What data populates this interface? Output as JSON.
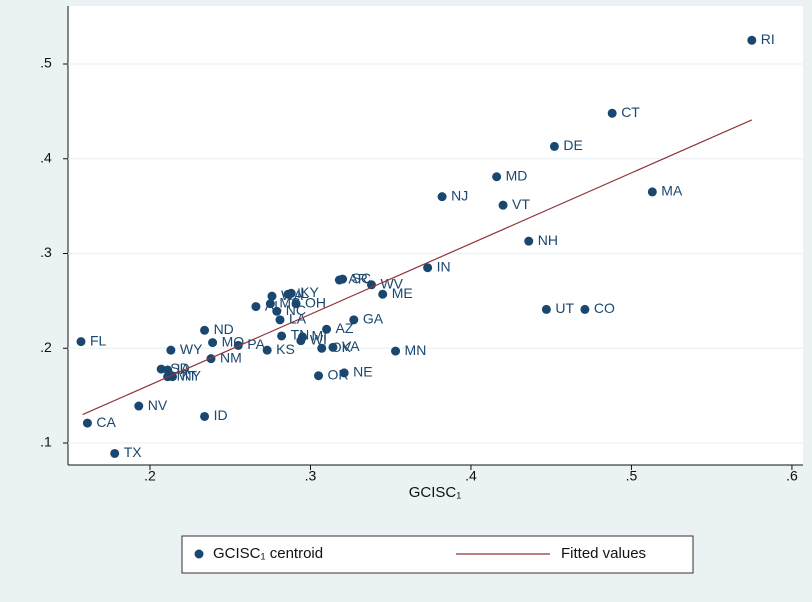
{
  "chart_data": {
    "type": "scatter",
    "x_label": "GCISC₁",
    "xlim": [
      0.1489,
      0.6069
    ],
    "ylim": [
      0.0768,
      0.5612
    ],
    "xticks": [
      {
        "value": 0.2,
        "label": ".2"
      },
      {
        "value": 0.3,
        "label": ".3"
      },
      {
        "value": 0.4,
        "label": ".4"
      },
      {
        "value": 0.5,
        "label": ".5"
      },
      {
        "value": 0.6,
        "label": ".6"
      }
    ],
    "yticks": [
      {
        "value": 0.1,
        "label": ".1"
      },
      {
        "value": 0.2,
        "label": ".2"
      },
      {
        "value": 0.3,
        "label": ".3"
      },
      {
        "value": 0.4,
        "label": ".4"
      },
      {
        "value": 0.5,
        "label": ".5"
      }
    ],
    "grid": true,
    "series": [
      {
        "name": "GCISC₁ centroid",
        "color": "#1a476f",
        "point_labels": [
          "FL",
          "CA",
          "TX",
          "NV",
          "ID",
          "ND",
          "WY",
          "NM",
          "SD",
          "IA",
          "MT",
          "NY",
          "MO",
          "PA",
          "KS",
          "AL",
          "MS",
          "WA",
          "IL",
          "KY",
          "OH",
          "NC",
          "LA",
          "TN",
          "MI",
          "WI",
          "AZ",
          "GA",
          "OK",
          "VA",
          "OR",
          "NE",
          "MN",
          "AR",
          "SC",
          "WV",
          "ME",
          "IN",
          "UT",
          "CO",
          "NH",
          "VT",
          "NJ",
          "MA",
          "MD",
          "DE",
          "CT",
          "RI"
        ],
        "x": [
          0.157,
          0.161,
          0.178,
          0.193,
          0.234,
          0.234,
          0.213,
          0.238,
          0.207,
          0.211,
          0.211,
          0.214,
          0.239,
          0.255,
          0.273,
          0.266,
          0.275,
          0.276,
          0.286,
          0.288,
          0.291,
          0.279,
          0.281,
          0.282,
          0.295,
          0.294,
          0.31,
          0.327,
          0.307,
          0.314,
          0.305,
          0.321,
          0.353,
          0.318,
          0.32,
          0.338,
          0.345,
          0.373,
          0.447,
          0.471,
          0.436,
          0.42,
          0.382,
          0.513,
          0.416,
          0.452,
          0.488,
          0.575
        ],
        "values": [
          0.207,
          0.121,
          0.089,
          0.139,
          0.128,
          0.219,
          0.198,
          0.189,
          0.178,
          0.177,
          0.17,
          0.17,
          0.206,
          0.203,
          0.198,
          0.244,
          0.247,
          0.255,
          0.257,
          0.258,
          0.247,
          0.239,
          0.23,
          0.213,
          0.212,
          0.208,
          0.22,
          0.23,
          0.2,
          0.201,
          0.171,
          0.174,
          0.197,
          0.272,
          0.273,
          0.267,
          0.257,
          0.285,
          0.241,
          0.241,
          0.313,
          0.351,
          0.36,
          0.365,
          0.381,
          0.413,
          0.448,
          0.525
        ]
      },
      {
        "name": "Fitted values",
        "color": "#90353b",
        "x": [
          0.158,
          0.575
        ],
        "values": [
          0.13,
          0.441
        ]
      }
    ]
  }
}
